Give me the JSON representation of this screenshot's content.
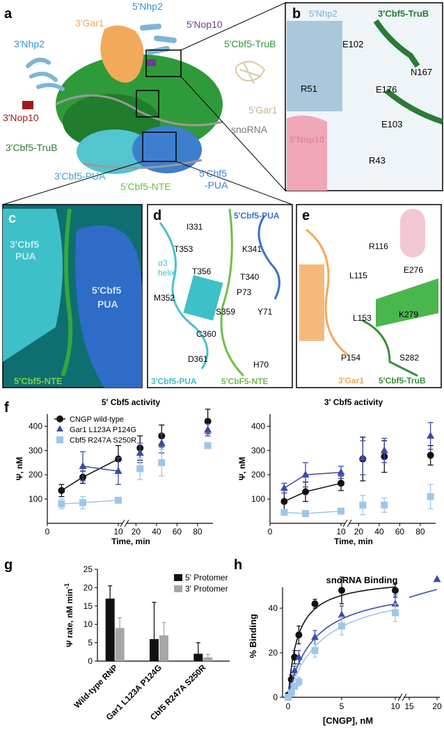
{
  "panel_letters": {
    "a": "a",
    "b": "b",
    "c": "c",
    "d": "d",
    "e": "e",
    "f": "f",
    "g": "g",
    "h": "h"
  },
  "panel_a": {
    "labels": {
      "nhp2_5": "5′Nhp2",
      "gar1_3": "3′Gar1",
      "nhp2_3": "3′Nhp2",
      "nop10_5": "5′Nop10",
      "cbf5trub_5": "5′Cbf5-TruB",
      "nop10_3": "3′Nop10",
      "gar1_5": "5′Gar1",
      "snorna": "snoRNA",
      "cbf5trub_3": "3′Cbf5-TruB",
      "cbf5pua_3": "3′Cbf5-PUA",
      "cbf5_5": "5′Cbf5",
      "pua_5": "-PUA",
      "nte_5": "5′Cbf5-NTE"
    },
    "colors": {
      "blue_light": "#7db4d8",
      "orange": "#f2a95a",
      "green": "#2f9a3a",
      "teal": "#52c5cf",
      "blue": "#3d7fcf",
      "purple": "#6a3f8f",
      "dark_red": "#9b1b1b",
      "beige": "#d9c9a8",
      "grey": "#9a9a9a"
    }
  },
  "panel_b": {
    "labels": {
      "nhp2": "5′Nhp2",
      "cbf5": "3′Cbf5-TruB",
      "e102": "E102",
      "n167": "N167",
      "r51": "R51",
      "e176": "E176",
      "e103": "E103",
      "nop10": "5′Nop10",
      "r43": "R43"
    }
  },
  "panel_c": {
    "labels": {
      "pua3a": "3′Cbf5",
      "pua3b": "PUA",
      "pua5a": "5′Cbf5",
      "pua5b": "PUA",
      "nte": "5′Cbf5-NTE"
    }
  },
  "panel_d": {
    "labels": {
      "pua5": "5′Cbf5-PUA",
      "i331": "I331",
      "t353": "T353",
      "k341": "K341",
      "a3": "α3",
      "helix": "helix",
      "t356": "T356",
      "t340": "T340",
      "p73": "P73",
      "m352": "M352",
      "y71": "Y71",
      "s359": "S359",
      "c360": "C360",
      "d361": "D361",
      "h70": "H70",
      "pua3": "3′Cbf5-PUA",
      "nte": "5′CbF5-NTE"
    }
  },
  "panel_e": {
    "labels": {
      "r116": "R116",
      "l115": "L115",
      "e276": "E276",
      "l153": "L153",
      "k279": "K279",
      "p154": "P154",
      "s282": "S282",
      "gar1": "3′Gar1",
      "trub": "5′Cbf5-TruB"
    }
  },
  "panel_f": {
    "y_label": "Ψ, nM",
    "x_label": "Time, min",
    "x_ticks_left": [
      "0",
      "10"
    ],
    "x_ticks_right": [
      "20",
      "40",
      "60",
      "80"
    ],
    "y_ticks": [
      "100",
      "200",
      "300",
      "400"
    ],
    "legend": [
      "CNGP wild-type",
      "Gar1 L123A P124G",
      "Cbf5 R247A S250R"
    ],
    "series_colors": [
      "#111111",
      "#3a4aa8",
      "#9ec6ea"
    ],
    "charts": [
      {
        "title": "5′ Cbf5 activity"
      },
      {
        "title": "3′ Cbf5 activity"
      }
    ]
  },
  "panel_g": {
    "y_label": "Ψ rate, nM min",
    "y_label_sup": "-1",
    "y_ticks": [
      "0",
      "5",
      "10",
      "15",
      "20",
      "25"
    ],
    "legend": [
      "5′ Protomer",
      "3′ Protomer"
    ],
    "categories": [
      "Wild-type RNP",
      "Gar1 L123A P124G",
      "Cbf5 R247A S250R"
    ],
    "colors": [
      "#111111",
      "#a6a6a6"
    ]
  },
  "panel_h": {
    "title": "snoRNA Binding",
    "y_label": "% Binding",
    "x_label": "[CNGP], nM",
    "x_ticks": [
      "0",
      "5",
      "10",
      "15",
      "20"
    ],
    "y_ticks": [
      "0",
      "20",
      "40"
    ]
  },
  "chart_data": [
    {
      "type": "line",
      "title": "5′ Cbf5 activity",
      "xlabel": "Time, min",
      "ylabel": "Ψ, nM",
      "ylim": [
        0,
        450
      ],
      "axis_break_after": 10,
      "series": [
        {
          "name": "CNGP wild-type",
          "x": [
            2,
            5,
            10,
            24,
            45,
            90
          ],
          "values": [
            135,
            190,
            265,
            310,
            360,
            420
          ],
          "err": [
            25,
            25,
            55,
            50,
            45,
            50
          ]
        },
        {
          "name": "Gar1 L123A P124G",
          "x": [
            2,
            5,
            10,
            24,
            45,
            90
          ],
          "values": [
            null,
            235,
            215,
            290,
            330,
            385
          ],
          "err": [
            null,
            60,
            55,
            40,
            40,
            25
          ]
        },
        {
          "name": "Cbf5 R247A S250R",
          "x": [
            2,
            5,
            10,
            24,
            45,
            90
          ],
          "values": [
            80,
            85,
            95,
            225,
            250,
            320
          ],
          "err": [
            20,
            25,
            null,
            45,
            55,
            null
          ]
        }
      ]
    },
    {
      "type": "line",
      "title": "3′ Cbf5 activity",
      "xlabel": "Time, min",
      "ylabel": "Ψ, nM",
      "ylim": [
        0,
        450
      ],
      "axis_break_after": 10,
      "series": [
        {
          "name": "CNGP wild-type",
          "x": [
            2,
            5,
            10,
            24,
            45,
            90
          ],
          "values": [
            90,
            130,
            165,
            265,
            275,
            280
          ],
          "err": [
            35,
            40,
            30,
            90,
            65,
            40
          ]
        },
        {
          "name": "Gar1 L123A P124G",
          "x": [
            2,
            5,
            10,
            24,
            45,
            90
          ],
          "values": [
            145,
            200,
            210,
            270,
            300,
            360
          ],
          "err": [
            20,
            50,
            25,
            70,
            50,
            55
          ]
        },
        {
          "name": "Cbf5 R247A S250R",
          "x": [
            2,
            5,
            10,
            24,
            45,
            90
          ],
          "values": [
            45,
            40,
            50,
            75,
            75,
            110
          ],
          "err": [
            null,
            null,
            null,
            40,
            30,
            50
          ]
        }
      ]
    },
    {
      "type": "bar",
      "categories": [
        "Wild-type RNP",
        "Gar1 L123A P124G",
        "Cbf5 R247A S250R"
      ],
      "ylabel": "Ψ rate, nM min-1",
      "ylim": [
        0,
        25
      ],
      "series": [
        {
          "name": "5′ Protomer",
          "values": [
            17,
            6,
            2
          ],
          "err": [
            3.5,
            10,
            3
          ]
        },
        {
          "name": "3′ Protomer",
          "values": [
            9,
            7,
            1
          ],
          "err": [
            2.8,
            3.5,
            0.8
          ]
        }
      ]
    },
    {
      "type": "scatter",
      "title": "snoRNA Binding",
      "xlabel": "[CNGP], nM",
      "ylabel": "% Binding",
      "ylim": [
        0,
        55
      ],
      "axis_break_after": 10,
      "series": [
        {
          "marker": "circle",
          "color": "#111111",
          "x": [
            0,
            0.3,
            0.6,
            1,
            2.5,
            5,
            10
          ],
          "values": [
            1,
            8,
            18,
            28,
            42,
            48,
            48
          ],
          "err": [
            1,
            2,
            3,
            4,
            2,
            6,
            3
          ]
        },
        {
          "marker": "triangle",
          "color": "#3a4aa8",
          "x": [
            0,
            0.3,
            0.6,
            1,
            2.5,
            5,
            10,
            20
          ],
          "values": [
            0,
            4,
            12,
            18,
            27,
            37,
            42,
            53
          ],
          "err": [
            1,
            1,
            2,
            3,
            3,
            4,
            4,
            null
          ]
        },
        {
          "marker": "square",
          "color": "#9ec6ea",
          "x": [
            0,
            0.3,
            0.6,
            1,
            2.5,
            5,
            10
          ],
          "values": [
            0,
            2,
            5,
            7,
            21,
            32,
            38
          ],
          "err": [
            1,
            1,
            1,
            2,
            3,
            4,
            4
          ]
        }
      ]
    }
  ]
}
